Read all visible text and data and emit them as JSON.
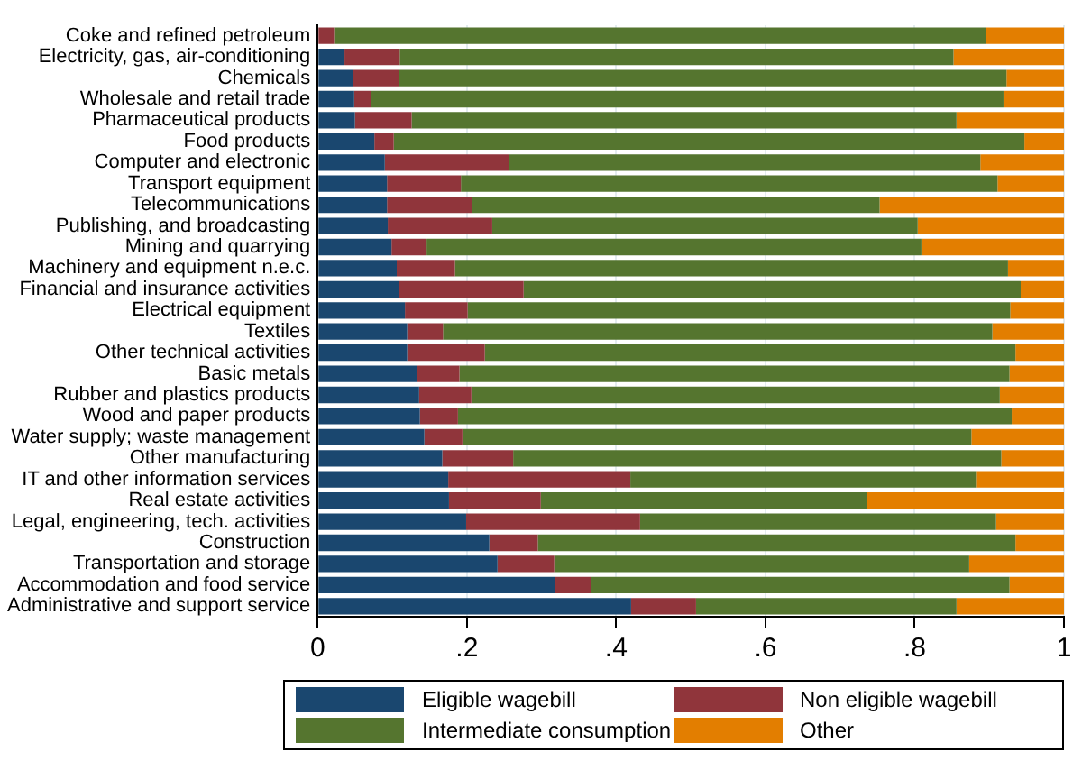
{
  "chart_data": {
    "type": "bar",
    "orientation": "horizontal",
    "stacked": true,
    "categories": [
      "Coke and refined petroleum",
      "Electricity, gas, air-conditioning",
      "Chemicals",
      "Wholesale and retail trade",
      "Pharmaceutical products",
      "Food products",
      "Computer and electronic",
      "Transport equipment",
      "Telecommunications",
      "Publishing, and broadcasting",
      "Mining and quarrying",
      "Machinery and equipment n.e.c.",
      "Financial and insurance activities",
      "Electrical equipment",
      "Textiles",
      "Other technical activities",
      "Basic metals",
      "Rubber and plastics products",
      "Wood and paper products",
      "Water supply; waste management",
      "Other manufacturing",
      "IT and other information services",
      "Real estate activities",
      "Legal, engineering, tech. activities",
      "Construction",
      "Transportation and storage",
      "Accommodation and food service",
      "Administrative and support service"
    ],
    "series": [
      {
        "name": "Eligible wagebill",
        "color": "#1a476f",
        "values": [
          0,
          0.036,
          0.048,
          0.049,
          0.05,
          0.076,
          0.09,
          0.093,
          0.093,
          0.094,
          0.099,
          0.106,
          0.109,
          0.117,
          0.12,
          0.12,
          0.133,
          0.136,
          0.137,
          0.143,
          0.167,
          0.175,
          0.176,
          0.199,
          0.23,
          0.241,
          0.318,
          0.42
        ]
      },
      {
        "name": "Non eligible wagebill",
        "color": "#90353b",
        "values": [
          0.022,
          0.074,
          0.061,
          0.022,
          0.076,
          0.026,
          0.167,
          0.099,
          0.114,
          0.14,
          0.047,
          0.078,
          0.167,
          0.084,
          0.048,
          0.104,
          0.057,
          0.07,
          0.051,
          0.051,
          0.095,
          0.244,
          0.123,
          0.233,
          0.065,
          0.076,
          0.048,
          0.087
        ]
      },
      {
        "name": "Intermediate consumption",
        "color": "#55752f",
        "values": [
          0.873,
          0.742,
          0.814,
          0.848,
          0.73,
          0.845,
          0.631,
          0.719,
          0.546,
          0.57,
          0.663,
          0.741,
          0.666,
          0.727,
          0.736,
          0.711,
          0.737,
          0.708,
          0.742,
          0.682,
          0.654,
          0.463,
          0.437,
          0.477,
          0.64,
          0.556,
          0.561,
          0.349
        ]
      },
      {
        "name": "Other",
        "color": "#e37e00",
        "values": [
          0.105,
          0.148,
          0.077,
          0.081,
          0.144,
          0.053,
          0.112,
          0.089,
          0.247,
          0.196,
          0.191,
          0.075,
          0.058,
          0.072,
          0.096,
          0.065,
          0.073,
          0.086,
          0.07,
          0.124,
          0.084,
          0.118,
          0.264,
          0.091,
          0.065,
          0.127,
          0.073,
          0.144
        ]
      }
    ],
    "xlim": [
      0,
      1
    ],
    "xticks": [
      0,
      {
        "value": 0.2,
        "label": ".2"
      },
      {
        "value": 0.4,
        "label": ".4"
      },
      {
        "value": 0.6,
        "label": ".6"
      },
      {
        "value": 0.8,
        "label": ".8"
      },
      1
    ],
    "grid": "x",
    "legend": "bottom"
  }
}
